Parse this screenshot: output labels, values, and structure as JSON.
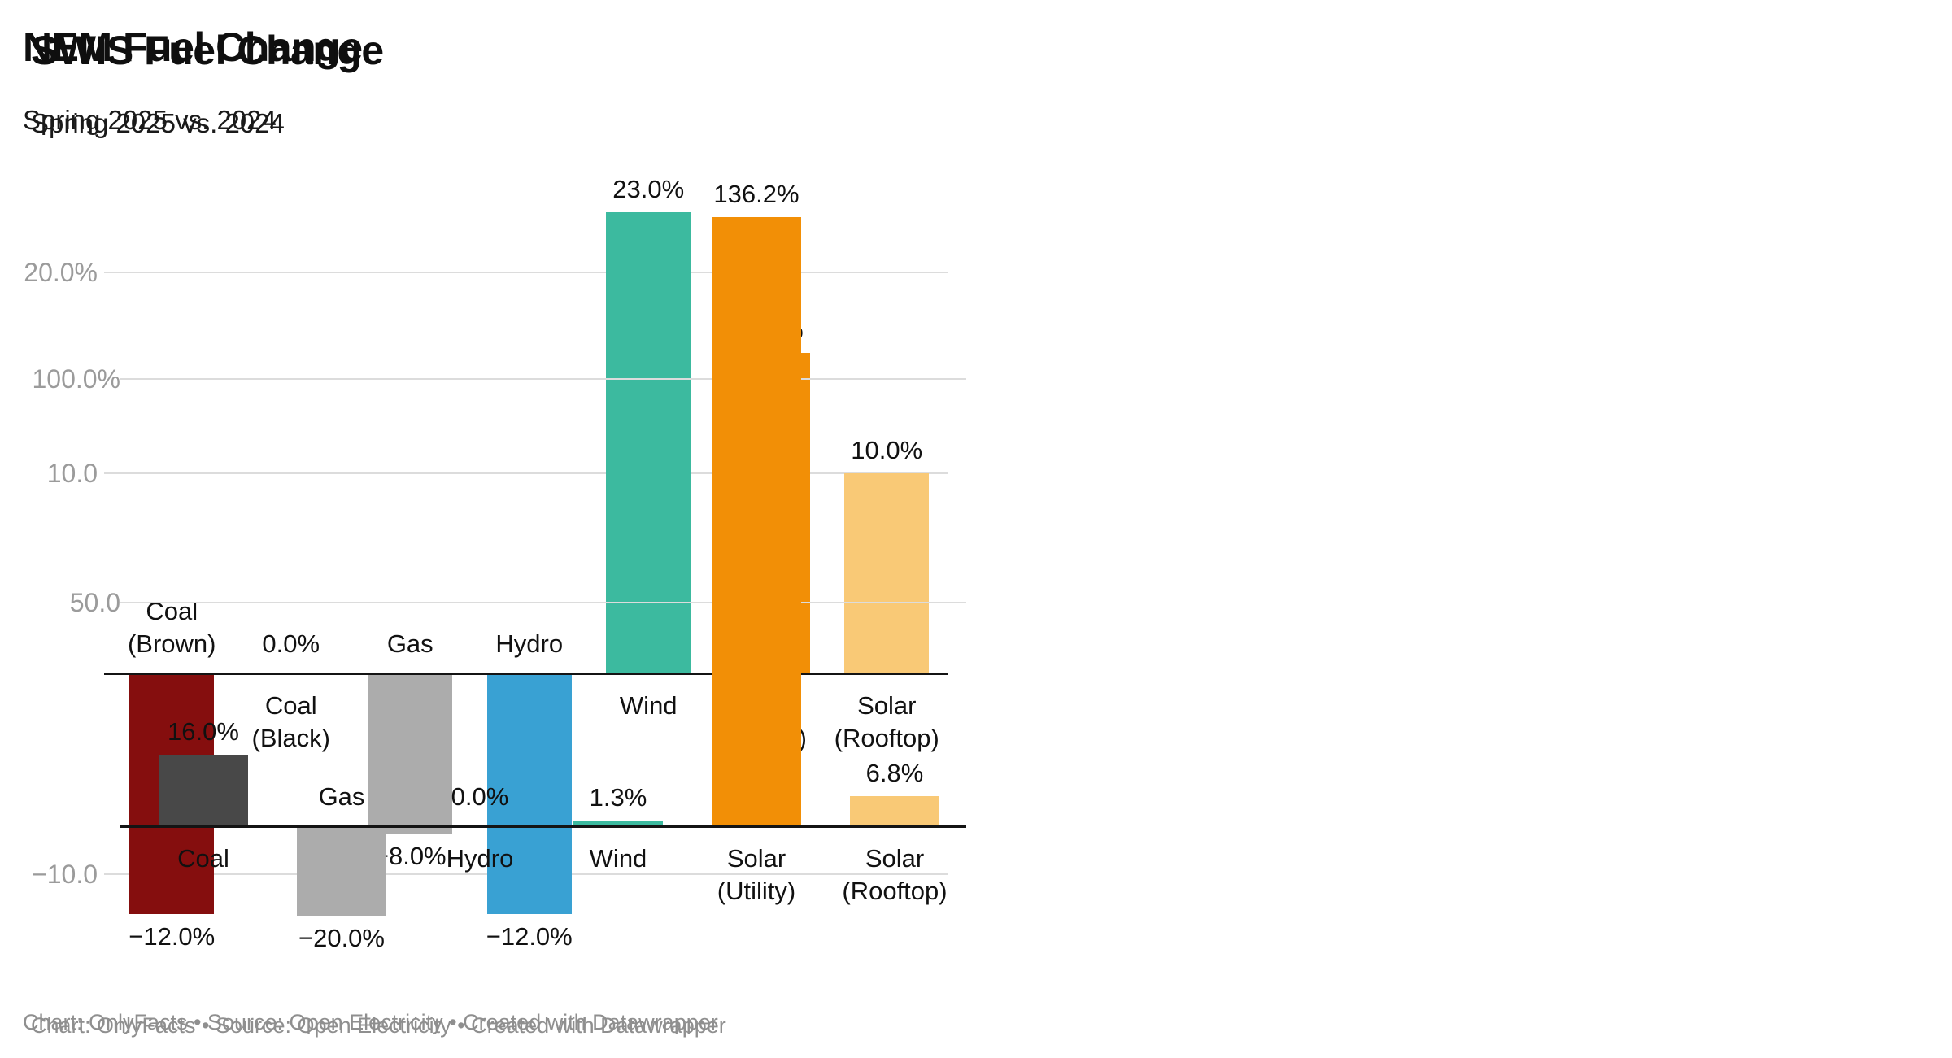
{
  "page": {
    "background": "#ffffff"
  },
  "colors": {
    "grid": "#dcdcdc",
    "zero_axis": "#141414",
    "tick_label": "#9b9b9b",
    "text": "#111111",
    "footer": "#8f8f8f"
  },
  "chart_data": [
    {
      "id": "nem",
      "type": "bar",
      "title": "NEM Fuel Change",
      "subtitle": "Spring 2025 vs. 2024",
      "footer": "Chart: OnlyFacts • Source: Open Electricity • Created with Datawrapper",
      "categories": [
        "Coal (Brown)",
        "Coal (Black)",
        "Gas",
        "Hydro",
        "Wind",
        "Solar (Utility)",
        "Solar (Rooftop)"
      ],
      "category_lines": [
        [
          "Coal",
          "(Brown)"
        ],
        [
          "Coal",
          "(Black)"
        ],
        [
          "Gas"
        ],
        [
          "Hydro"
        ],
        [
          "Wind"
        ],
        [
          "Solar",
          "(Utility)"
        ],
        [
          "Solar",
          "(Rooftop)"
        ]
      ],
      "values": [
        -12.0,
        0.0,
        -8.0,
        -12.0,
        23.0,
        16.0,
        10.0
      ],
      "value_labels": [
        "−12.0%",
        "0.0%",
        "−8.0%",
        "−12.0%",
        "23.0%",
        "16.0%",
        "10.0%"
      ],
      "bar_colors": [
        "#850E0E",
        "#ACACAC",
        "#ACACAC",
        "#39A1D3",
        "#3CBA9F",
        "#F28F06",
        "#F9C976"
      ],
      "yticks": [
        {
          "value": 20,
          "label": "20.0%"
        },
        {
          "value": 10,
          "label": "10.0"
        },
        {
          "value": -10,
          "label": "−10.0"
        }
      ],
      "ylim": [
        -14.5,
        24.5
      ],
      "xlabel": "",
      "ylabel": "",
      "grid": true,
      "legend": "none"
    },
    {
      "id": "swis",
      "type": "bar",
      "title": "SWIS Fuel Change",
      "subtitle": "Spring 2025 vs. 2024",
      "footer": "Chart: OnlyFacts • Source: Open Electricity • Created with Datawrapper",
      "categories": [
        "Coal",
        "Gas",
        "Hydro",
        "Wind",
        "Solar (Utility)",
        "Solar (Rooftop)"
      ],
      "category_lines": [
        [
          "Coal"
        ],
        [
          "Gas"
        ],
        [
          "Hydro"
        ],
        [
          "Wind"
        ],
        [
          "Solar",
          "(Utility)"
        ],
        [
          "Solar",
          "(Rooftop)"
        ]
      ],
      "values": [
        16.0,
        -20.0,
        0.0,
        1.3,
        136.2,
        6.8
      ],
      "value_labels": [
        "16.0%",
        "−20.0%",
        "0.0%",
        "1.3%",
        "136.2%",
        "6.8%"
      ],
      "bar_colors": [
        "#484848",
        "#ACACAC",
        "#ACACAC",
        "#3CBA9F",
        "#F28F06",
        "#F9C976"
      ],
      "yticks": [
        {
          "value": 100,
          "label": "100.0%"
        },
        {
          "value": 50,
          "label": "50.0"
        }
      ],
      "ylim": [
        -26,
        140
      ],
      "xlabel": "",
      "ylabel": "",
      "grid": true,
      "legend": "none"
    }
  ]
}
